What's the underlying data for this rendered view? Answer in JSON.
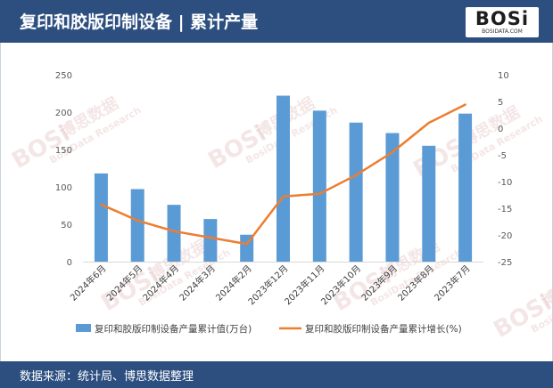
{
  "header": {
    "title": "复印和胶版印制设备 | 累计产量",
    "logo_text": "BOSi",
    "logo_sub": "BOSIDATA.COM"
  },
  "footer": {
    "source": "数据来源：统计局、博思数据整理"
  },
  "colors": {
    "header_bg": "#2d4f80",
    "bar": "#5b9bd5",
    "line": "#ed7d31",
    "watermark": "#e8c8c8"
  },
  "watermark": {
    "brand": "BOSi",
    "cn": "博思数据",
    "en": "BosiData Research"
  },
  "chart_data": {
    "type": "bar",
    "categories": [
      "2024年6月",
      "2024年5月",
      "2024年4月",
      "2024年3月",
      "2024年2月",
      "2023年12月",
      "2023年11月",
      "2023年10月",
      "2023年9月",
      "2023年8月",
      "2023年7月"
    ],
    "series": [
      {
        "name": "复印和胶版印制设备产量累计值(万台)",
        "type": "bar",
        "axis": "left",
        "values": [
          118,
          97,
          76,
          57,
          36,
          222,
          202,
          186,
          172,
          155,
          198
        ]
      },
      {
        "name": "复印和胶版印制设备产量累计增长(%)",
        "type": "line",
        "axis": "right",
        "values": [
          -14.3,
          -17.3,
          -19.3,
          -20.5,
          -21.7,
          -12.8,
          -12.3,
          -8.8,
          -4.5,
          1.0,
          4.4
        ]
      }
    ],
    "y_left": {
      "min": 0,
      "max": 250,
      "ticks": [
        0,
        50,
        100,
        150,
        200,
        250
      ]
    },
    "y_right": {
      "min": -25,
      "max": 10,
      "ticks": [
        -25,
        -20,
        -15,
        -10,
        -5,
        0,
        5,
        10
      ]
    },
    "grid": false,
    "legend_position": "bottom"
  }
}
